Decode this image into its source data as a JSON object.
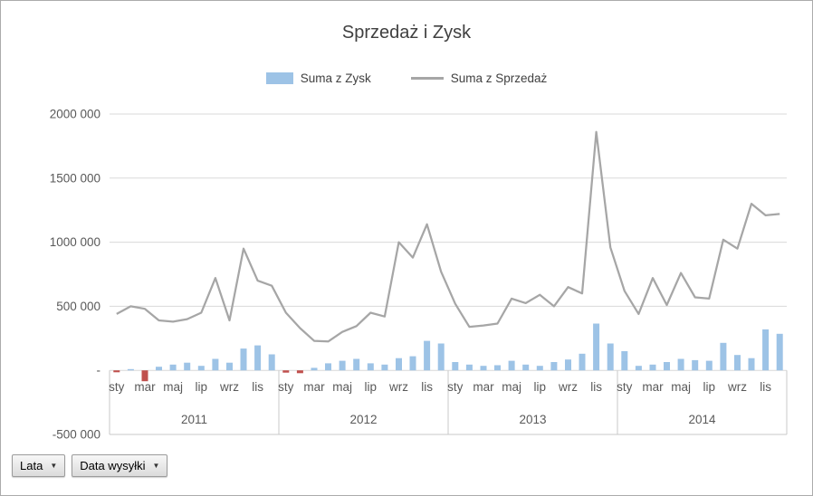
{
  "title": "Sprzedaż i Zysk",
  "field_buttons": [
    {
      "label": "Lata"
    },
    {
      "label": "Data wysyłki"
    }
  ],
  "chart_data": {
    "type": "combo",
    "title": "Sprzedaż i Zysk",
    "legend_position": "top",
    "grid": true,
    "x_years": [
      "2011",
      "2012",
      "2013",
      "2014"
    ],
    "months_per_year": 12,
    "month_tick_labels": [
      "sty",
      "mar",
      "maj",
      "lip",
      "wrz",
      "lis"
    ],
    "month_tick_positions": [
      0,
      2,
      4,
      6,
      8,
      10
    ],
    "ylim": [
      -500000,
      2000000
    ],
    "ytick_values": [
      -500000,
      0,
      500000,
      1000000,
      1500000,
      2000000
    ],
    "ytick_labels": [
      "-500 000",
      "-",
      "500 000",
      "1000 000",
      "1500 000",
      "2000 000"
    ],
    "series": [
      {
        "name": "Suma z Zysk",
        "type": "bar",
        "color": "#9DC3E6",
        "negative_color": "#C0504D",
        "values": [
          -15000,
          10000,
          -85000,
          28000,
          45000,
          60000,
          35000,
          90000,
          60000,
          170000,
          195000,
          125000,
          -18000,
          -22000,
          20000,
          55000,
          75000,
          90000,
          55000,
          45000,
          95000,
          110000,
          230000,
          210000,
          65000,
          45000,
          35000,
          40000,
          75000,
          45000,
          35000,
          65000,
          85000,
          130000,
          365000,
          210000,
          150000,
          35000,
          45000,
          65000,
          90000,
          80000,
          75000,
          215000,
          120000,
          95000,
          320000,
          285000
        ]
      },
      {
        "name": "Suma z Sprzedaż",
        "type": "line",
        "color": "#A6A6A6",
        "values": [
          440000,
          500000,
          480000,
          390000,
          380000,
          400000,
          450000,
          720000,
          390000,
          950000,
          700000,
          660000,
          450000,
          330000,
          230000,
          225000,
          300000,
          345000,
          450000,
          420000,
          1000000,
          880000,
          1140000,
          770000,
          520000,
          340000,
          350000,
          365000,
          560000,
          525000,
          590000,
          500000,
          650000,
          600000,
          1860000,
          960000,
          620000,
          440000,
          720000,
          510000,
          760000,
          570000,
          560000,
          1020000,
          950000,
          1300000,
          1210000,
          1220000
        ]
      }
    ]
  }
}
